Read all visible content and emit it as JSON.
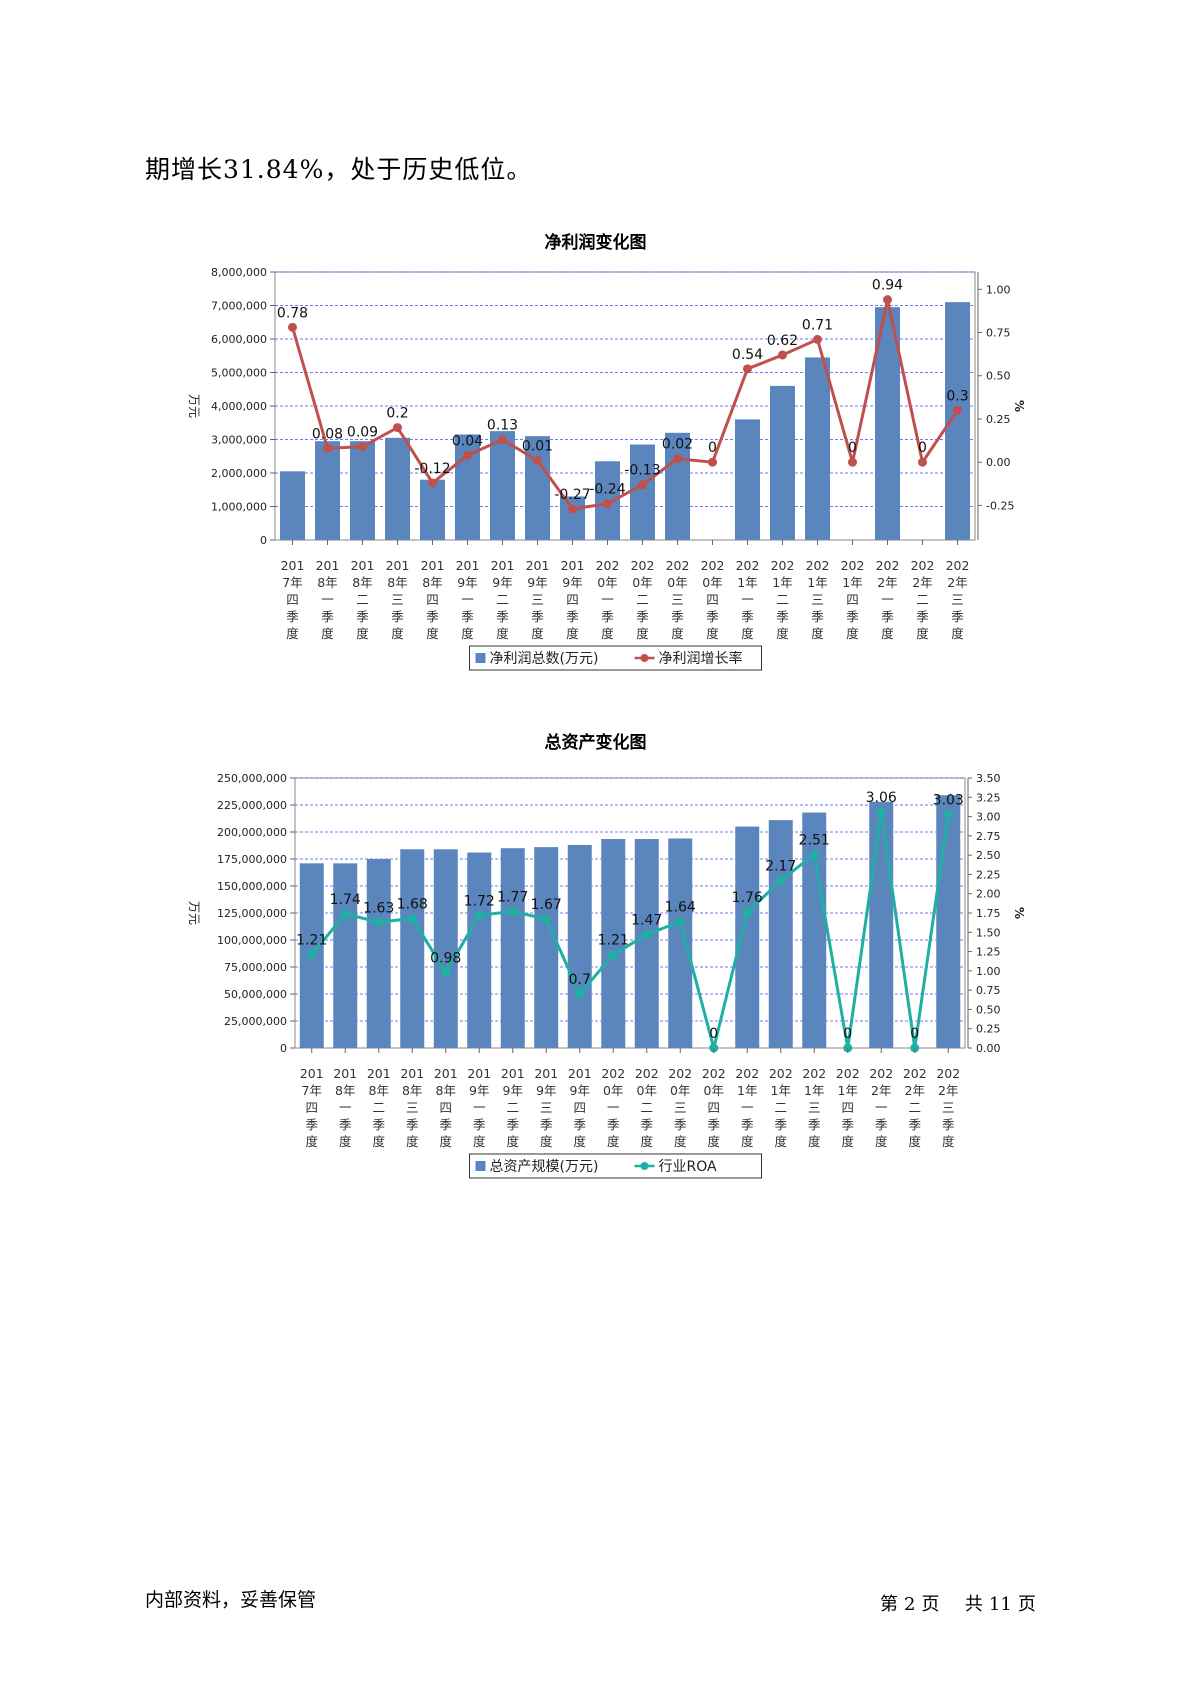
{
  "intro_text": "期增长31.84%，处于历史低位。",
  "chart_data": [
    {
      "type": "bar",
      "title": "净利润变化图",
      "ylabel": "万元",
      "y2label": "%",
      "categories": [
        "2017年四季度",
        "2018年一季度",
        "2018年二季度",
        "2018年三季度",
        "2018年四季度",
        "2019年一季度",
        "2019年二季度",
        "2019年三季度",
        "2019年四季度",
        "2020年一季度",
        "2020年二季度",
        "2020年三季度",
        "2020年四季度",
        "2021年一季度",
        "2021年二季度",
        "2021年三季度",
        "2021年四季度",
        "2022年一季度",
        "2022年二季度",
        "2022年三季度"
      ],
      "category_labels": [
        [
          "201",
          "7年",
          "四",
          "季",
          "度"
        ],
        [
          "201",
          "8年",
          "一",
          "季",
          "度"
        ],
        [
          "201",
          "8年",
          "二",
          "季",
          "度"
        ],
        [
          "201",
          "8年",
          "三",
          "季",
          "度"
        ],
        [
          "201",
          "8年",
          "四",
          "季",
          "度"
        ],
        [
          "201",
          "9年",
          "一",
          "季",
          "度"
        ],
        [
          "201",
          "9年",
          "二",
          "季",
          "度"
        ],
        [
          "201",
          "9年",
          "三",
          "季",
          "度"
        ],
        [
          "201",
          "9年",
          "四",
          "季",
          "度"
        ],
        [
          "202",
          "0年",
          "一",
          "季",
          "度"
        ],
        [
          "202",
          "0年",
          "二",
          "季",
          "度"
        ],
        [
          "202",
          "0年",
          "三",
          "季",
          "度"
        ],
        [
          "202",
          "0年",
          "四",
          "季",
          "度"
        ],
        [
          "202",
          "1年",
          "一",
          "季",
          "度"
        ],
        [
          "202",
          "1年",
          "二",
          "季",
          "度"
        ],
        [
          "202",
          "1年",
          "三",
          "季",
          "度"
        ],
        [
          "202",
          "1年",
          "四",
          "季",
          "度"
        ],
        [
          "202",
          "2年",
          "一",
          "季",
          "度"
        ],
        [
          "202",
          "2年",
          "二",
          "季",
          "度"
        ],
        [
          "202",
          "2年",
          "三",
          "季",
          "度"
        ]
      ],
      "series": [
        {
          "name": "净利润总数(万元)",
          "kind": "bar",
          "axis": "left",
          "color": "#5a86bd",
          "values": [
            2050000,
            2950000,
            2950000,
            3050000,
            1800000,
            3150000,
            3250000,
            3100000,
            1300000,
            2350000,
            2850000,
            3200000,
            0,
            3600000,
            4600000,
            5450000,
            0,
            6950000,
            0,
            7100000
          ]
        },
        {
          "name": "净利润增长率",
          "kind": "line",
          "axis": "right",
          "color": "#c0504d",
          "values": [
            0.78,
            0.08,
            0.09,
            0.2,
            -0.12,
            0.04,
            0.13,
            0.01,
            -0.27,
            -0.24,
            -0.13,
            0.02,
            0,
            0.54,
            0.62,
            0.71,
            0,
            0.94,
            0,
            0.3
          ],
          "labels": [
            "0.78",
            "0.08",
            "0.09",
            "0.2",
            "-0.12",
            "0.04",
            "0.13",
            "0.01",
            "-0.27",
            "-0.24",
            "-0.13",
            "0.02",
            "0",
            "0.54",
            "0.62",
            "0.71",
            "0",
            "0.94",
            "0",
            "0.3"
          ]
        }
      ],
      "y_ticks": [
        "0",
        "1,000,000",
        "2,000,000",
        "3,000,000",
        "4,000,000",
        "5,000,000",
        "6,000,000",
        "7,000,000",
        "8,000,000"
      ],
      "y2_ticks": [
        "-0.25",
        "0.00",
        "0.25",
        "0.50",
        "0.75",
        "1.00"
      ],
      "ylim": [
        0,
        8000000
      ],
      "y2lim": [
        -0.45,
        1.1
      ],
      "legend_position": "bottom-center",
      "grid": true
    },
    {
      "type": "bar",
      "title": "总资产变化图",
      "ylabel": "万元",
      "y2label": "%",
      "categories": [
        "2017年四季度",
        "2018年一季度",
        "2018年二季度",
        "2018年三季度",
        "2018年四季度",
        "2019年一季度",
        "2019年二季度",
        "2019年三季度",
        "2019年四季度",
        "2020年一季度",
        "2020年二季度",
        "2020年三季度",
        "2020年四季度",
        "2021年一季度",
        "2021年二季度",
        "2021年三季度",
        "2021年四季度",
        "2022年一季度",
        "2022年二季度",
        "2022年三季度"
      ],
      "category_labels": [
        [
          "201",
          "7年",
          "四",
          "季",
          "度"
        ],
        [
          "201",
          "8年",
          "一",
          "季",
          "度"
        ],
        [
          "201",
          "8年",
          "二",
          "季",
          "度"
        ],
        [
          "201",
          "8年",
          "三",
          "季",
          "度"
        ],
        [
          "201",
          "8年",
          "四",
          "季",
          "度"
        ],
        [
          "201",
          "9年",
          "一",
          "季",
          "度"
        ],
        [
          "201",
          "9年",
          "二",
          "季",
          "度"
        ],
        [
          "201",
          "9年",
          "三",
          "季",
          "度"
        ],
        [
          "201",
          "9年",
          "四",
          "季",
          "度"
        ],
        [
          "202",
          "0年",
          "一",
          "季",
          "度"
        ],
        [
          "202",
          "0年",
          "二",
          "季",
          "度"
        ],
        [
          "202",
          "0年",
          "三",
          "季",
          "度"
        ],
        [
          "202",
          "0年",
          "四",
          "季",
          "度"
        ],
        [
          "202",
          "1年",
          "一",
          "季",
          "度"
        ],
        [
          "202",
          "1年",
          "二",
          "季",
          "度"
        ],
        [
          "202",
          "1年",
          "三",
          "季",
          "度"
        ],
        [
          "202",
          "1年",
          "四",
          "季",
          "度"
        ],
        [
          "202",
          "2年",
          "一",
          "季",
          "度"
        ],
        [
          "202",
          "2年",
          "二",
          "季",
          "度"
        ],
        [
          "202",
          "2年",
          "三",
          "季",
          "度"
        ]
      ],
      "series": [
        {
          "name": "总资产规模(万元)",
          "kind": "bar",
          "axis": "left",
          "color": "#5a86bd",
          "values": [
            171000000,
            171000000,
            175000000,
            184000000,
            184000000,
            181000000,
            185000000,
            186000000,
            188000000,
            193500000,
            193500000,
            194000000,
            0,
            205000000,
            211000000,
            218000000,
            0,
            228000000,
            0,
            234000000
          ]
        },
        {
          "name": "行业ROA",
          "kind": "line",
          "axis": "right",
          "color": "#1fb0a3",
          "values": [
            1.21,
            1.74,
            1.63,
            1.68,
            0.98,
            1.72,
            1.77,
            1.67,
            0.7,
            1.21,
            1.47,
            1.64,
            0,
            1.76,
            2.17,
            2.51,
            0,
            3.06,
            0,
            3.03
          ],
          "labels": [
            "1.21",
            "1.74",
            "1.63",
            "1.68",
            "0.98",
            "1.72",
            "1.77",
            "1.67",
            "0.7",
            "1.21",
            "1.47",
            "1.64",
            "0",
            "1.76",
            "2.17",
            "2.51",
            "0",
            "3.06",
            "0",
            "3.03"
          ]
        }
      ],
      "y_ticks": [
        "0",
        "25,000,000",
        "50,000,000",
        "75,000,000",
        "100,000,000",
        "125,000,000",
        "150,000,000",
        "175,000,000",
        "200,000,000",
        "225,000,000",
        "250,000,000"
      ],
      "y2_ticks": [
        "0.00",
        "0.25",
        "0.50",
        "0.75",
        "1.00",
        "1.25",
        "1.50",
        "1.75",
        "2.00",
        "2.25",
        "2.50",
        "2.75",
        "3.00",
        "3.25",
        "3.50"
      ],
      "ylim": [
        0,
        250000000
      ],
      "y2lim": [
        0,
        3.5
      ],
      "legend_position": "bottom-center",
      "grid": true
    }
  ],
  "footer": {
    "left": "内部资料，妥善保管",
    "page_label_1": "第",
    "page_number": "2",
    "page_label_2": "页",
    "total_label_1": "共",
    "total_pages": "11",
    "total_label_2": "页"
  }
}
